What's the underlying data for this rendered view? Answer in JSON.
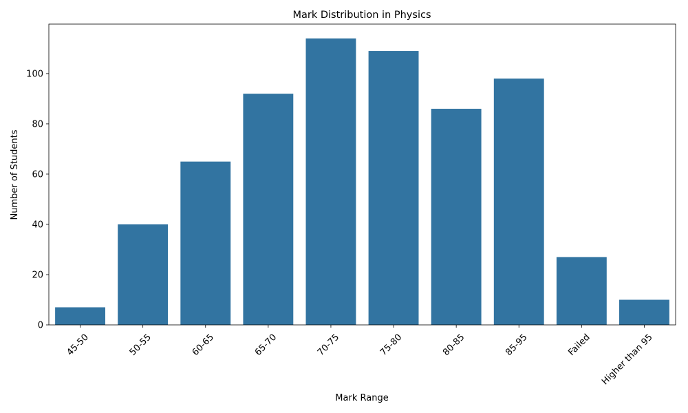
{
  "chart_data": {
    "type": "bar",
    "title": "Mark Distribution in Physics",
    "xlabel": "Mark Range",
    "ylabel": "Number of Students",
    "categories": [
      "45-50",
      "50-55",
      "60-65",
      "65-70",
      "70-75",
      "75-80",
      "80-85",
      "85-95",
      "Failed",
      "Higher than 95"
    ],
    "values": [
      7,
      40,
      65,
      92,
      114,
      109,
      86,
      98,
      27,
      10
    ],
    "ylim": [
      0,
      119.7
    ],
    "yticks": [
      0,
      20,
      40,
      60,
      80,
      100
    ],
    "grid": false,
    "bar_color": "#3274a1"
  }
}
